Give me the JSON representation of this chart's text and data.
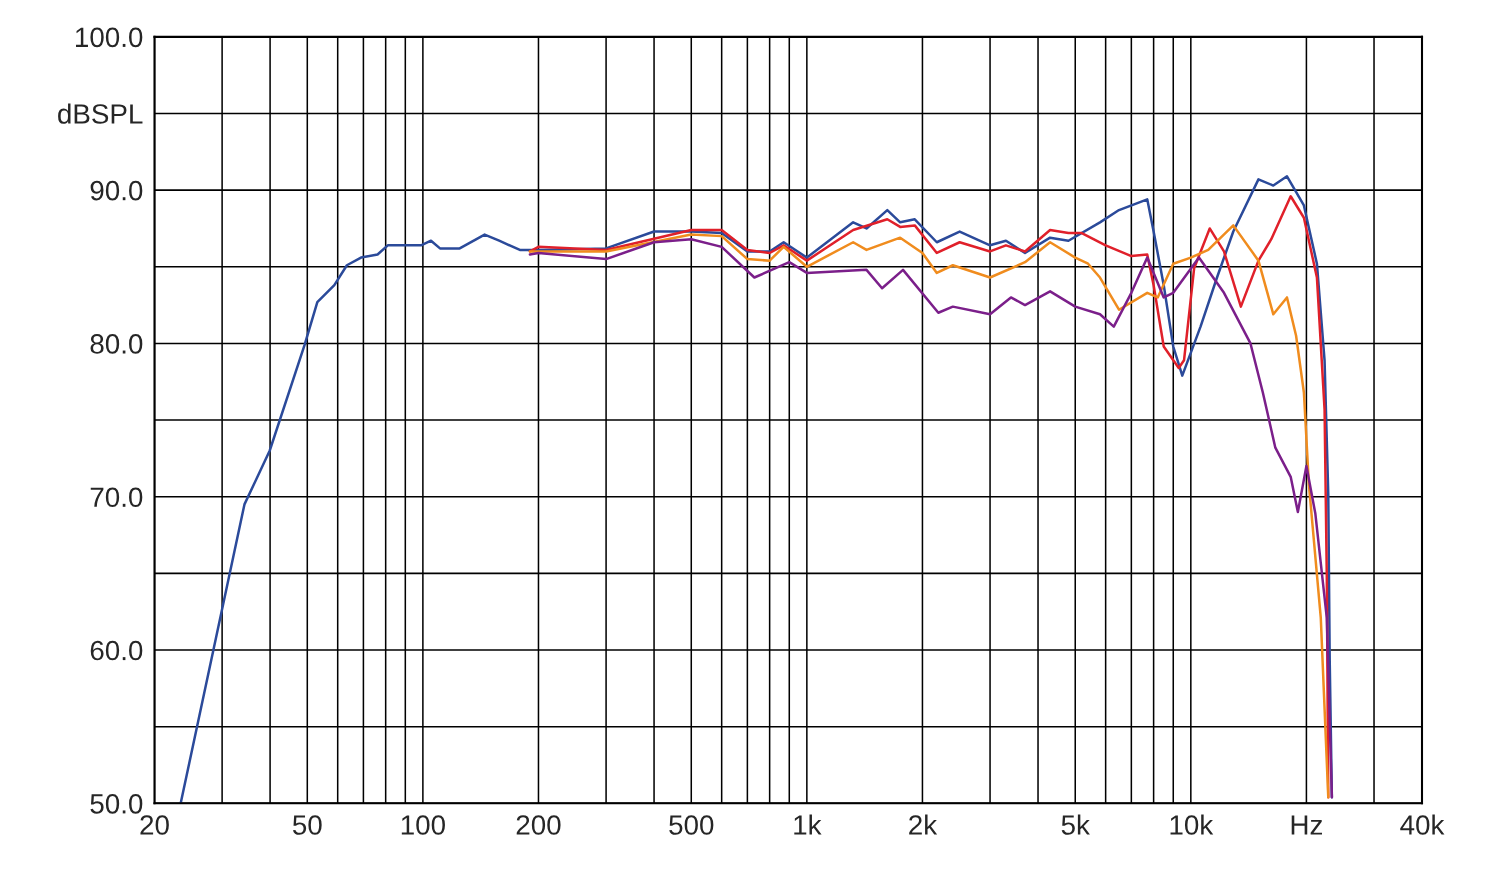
{
  "chart_data": {
    "type": "line",
    "ylabel": "dBSPL",
    "log": "x",
    "grid": true,
    "xlim": [
      20,
      40000
    ],
    "ylim": [
      50,
      100
    ],
    "xticks": [
      {
        "value": 20,
        "label": "20"
      },
      {
        "value": 30,
        "label": null
      },
      {
        "value": 40,
        "label": null
      },
      {
        "value": 50,
        "label": "50"
      },
      {
        "value": 60,
        "label": null
      },
      {
        "value": 70,
        "label": null
      },
      {
        "value": 80,
        "label": null
      },
      {
        "value": 90,
        "label": null
      },
      {
        "value": 100,
        "label": "100"
      },
      {
        "value": 200,
        "label": "200"
      },
      {
        "value": 300,
        "label": null
      },
      {
        "value": 400,
        "label": null
      },
      {
        "value": 500,
        "label": "500"
      },
      {
        "value": 600,
        "label": null
      },
      {
        "value": 700,
        "label": null
      },
      {
        "value": 800,
        "label": null
      },
      {
        "value": 900,
        "label": null
      },
      {
        "value": 1000,
        "label": "1k"
      },
      {
        "value": 2000,
        "label": "2k"
      },
      {
        "value": 3000,
        "label": null
      },
      {
        "value": 4000,
        "label": null
      },
      {
        "value": 5000,
        "label": "5k"
      },
      {
        "value": 6000,
        "label": null
      },
      {
        "value": 7000,
        "label": null
      },
      {
        "value": 8000,
        "label": null
      },
      {
        "value": 9000,
        "label": null
      },
      {
        "value": 10000,
        "label": "10k"
      },
      {
        "value": 20000,
        "label": "Hz"
      },
      {
        "value": 30000,
        "label": null
      },
      {
        "value": 40000,
        "label": "40k"
      }
    ],
    "yticks": [
      {
        "value": 50,
        "label": "50.0"
      },
      {
        "value": 55,
        "label": null
      },
      {
        "value": 60,
        "label": "60.0"
      },
      {
        "value": 65,
        "label": null
      },
      {
        "value": 70,
        "label": "70.0"
      },
      {
        "value": 75,
        "label": null
      },
      {
        "value": 80,
        "label": "80.0"
      },
      {
        "value": 85,
        "label": null
      },
      {
        "value": 90,
        "label": "90.0"
      },
      {
        "value": 95,
        "label": "dBSPL"
      },
      {
        "value": 100,
        "label": "100.0"
      }
    ],
    "series": [
      {
        "color": "#2b4a9a",
        "x": [
          23.4,
          29.9,
          34.3,
          39.9,
          49.2,
          53.1,
          58.8,
          63.4,
          69,
          76.2,
          81,
          98.9,
          105,
          110.8,
          124.7,
          144.8,
          158,
          178.9,
          200,
          300,
          400,
          500,
          600,
          700,
          800,
          870,
          1000,
          1320,
          1430,
          1620,
          1750,
          1910,
          2180,
          2500,
          3000,
          3300,
          3700,
          4300,
          4800,
          5800,
          6500,
          7700,
          8000,
          8500,
          9000,
          9500,
          10600,
          11700,
          12900,
          15000,
          16400,
          17800,
          19700,
          21300,
          22300,
          22800,
          23000,
          23300
        ],
        "values": [
          50,
          62.5,
          69.5,
          73,
          79.9,
          82.7,
          83.8,
          85.1,
          85.6,
          85.8,
          86.4,
          86.4,
          86.7,
          86.2,
          86.2,
          87.1,
          86.7,
          86.1,
          86.1,
          86.2,
          87.3,
          87.3,
          87.2,
          86.0,
          86.0,
          86.6,
          85.6,
          87.9,
          87.5,
          88.7,
          87.9,
          88.1,
          86.6,
          87.3,
          86.4,
          86.7,
          85.9,
          86.9,
          86.7,
          87.9,
          88.7,
          89.4,
          87.3,
          83.8,
          79.8,
          77.9,
          81.1,
          84.3,
          87.3,
          90.7,
          90.3,
          90.9,
          89.0,
          85.2,
          78.9,
          70.2,
          59.3,
          50.4
        ]
      },
      {
        "color": "#e0202a",
        "x": [
          190,
          200,
          300,
          500,
          600,
          700,
          800,
          870,
          1000,
          1320,
          1620,
          1750,
          1910,
          2180,
          2500,
          3000,
          3300,
          3700,
          4300,
          4800,
          5200,
          6000,
          7000,
          7700,
          8000,
          8500,
          9300,
          9600,
          10200,
          11200,
          12200,
          13500,
          15000,
          16200,
          18200,
          19700,
          21300,
          22300,
          22600,
          22800
        ],
        "values": [
          86.0,
          86.3,
          86.1,
          87.4,
          87.4,
          86.1,
          85.9,
          86.4,
          85.4,
          87.4,
          88.1,
          87.6,
          87.7,
          85.9,
          86.6,
          86.0,
          86.4,
          86.0,
          87.4,
          87.2,
          87.2,
          86.4,
          85.7,
          85.8,
          83.8,
          79.8,
          78.4,
          78.9,
          84.9,
          87.5,
          86.0,
          82.4,
          85.4,
          86.8,
          89.6,
          88.2,
          84.3,
          75.7,
          64.8,
          50.4
        ]
      },
      {
        "color": "#f08c1e",
        "x": [
          190,
          200,
          300,
          500,
          600,
          700,
          800,
          870,
          1000,
          1320,
          1430,
          1750,
          2000,
          2180,
          2400,
          3000,
          3700,
          4300,
          5000,
          5400,
          5800,
          6500,
          7700,
          8200,
          9000,
          10000,
          11100,
          12900,
          15000,
          16400,
          17800,
          18800,
          19700,
          20300,
          21800,
          22800
        ],
        "values": [
          86.0,
          86.0,
          86.0,
          87.1,
          87.0,
          85.5,
          85.4,
          86.3,
          85.0,
          86.6,
          86.1,
          86.9,
          85.9,
          84.6,
          85.1,
          84.3,
          85.3,
          86.6,
          85.6,
          85.2,
          84.3,
          82.2,
          83.3,
          83.0,
          85.2,
          85.6,
          86.1,
          87.7,
          85.4,
          81.9,
          83.0,
          80.5,
          76.8,
          70.8,
          62.1,
          50.4
        ]
      },
      {
        "color": "#7b1f8a",
        "x": [
          190,
          200,
          300,
          400,
          500,
          600,
          730,
          900,
          1000,
          1430,
          1570,
          1780,
          2200,
          2400,
          3000,
          3400,
          3700,
          4300,
          5000,
          5800,
          6300,
          7000,
          7700,
          8500,
          9000,
          10500,
          12200,
          14300,
          15400,
          16600,
          18200,
          19000,
          20000,
          21100,
          22600,
          23300
        ],
        "values": [
          85.8,
          85.9,
          85.5,
          86.6,
          86.8,
          86.3,
          84.3,
          85.3,
          84.6,
          84.8,
          83.6,
          84.8,
          82.0,
          82.4,
          81.9,
          83.0,
          82.5,
          83.4,
          82.4,
          81.9,
          81.1,
          83.3,
          85.6,
          83.0,
          83.3,
          85.6,
          83.3,
          80.0,
          76.8,
          73.2,
          71.3,
          69.0,
          72.0,
          68.9,
          62.1,
          50.4
        ]
      }
    ]
  }
}
